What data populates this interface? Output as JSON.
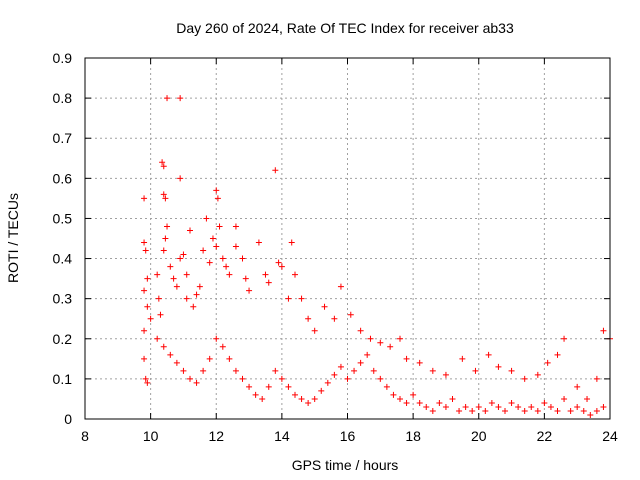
{
  "chart_data": {
    "type": "scatter",
    "title": "Day 260 of 2024, Rate Of TEC Index for receiver ab33",
    "xlabel": "GPS time / hours",
    "ylabel": "ROTI / TECUs",
    "xlim": [
      8,
      24
    ],
    "ylim": [
      0,
      0.9
    ],
    "xticks": [
      8,
      10,
      12,
      14,
      16,
      18,
      20,
      22,
      24
    ],
    "xtick_labels": [
      "8",
      "10",
      "12",
      "14",
      "16",
      "18",
      "20",
      "22",
      "24"
    ],
    "yticks": [
      0,
      0.1,
      0.2,
      0.3,
      0.4,
      0.5,
      0.6,
      0.7,
      0.8,
      0.9
    ],
    "ytick_labels": [
      "0",
      "0.1",
      "0.2",
      "0.3",
      "0.4",
      "0.5",
      "0.6",
      "0.7",
      "0.8",
      "0.9"
    ],
    "grid": true,
    "marker": "+",
    "color": "#ff0000",
    "series": [
      {
        "name": "ROTI",
        "points": [
          [
            9.8,
            0.55
          ],
          [
            9.8,
            0.44
          ],
          [
            9.85,
            0.42
          ],
          [
            9.9,
            0.35
          ],
          [
            9.8,
            0.22
          ],
          [
            9.8,
            0.15
          ],
          [
            9.85,
            0.1
          ],
          [
            9.9,
            0.09
          ],
          [
            9.8,
            0.32
          ],
          [
            9.9,
            0.28
          ],
          [
            10.2,
            0.36
          ],
          [
            10.25,
            0.3
          ],
          [
            10.3,
            0.26
          ],
          [
            10.35,
            0.64
          ],
          [
            10.4,
            0.63
          ],
          [
            10.4,
            0.56
          ],
          [
            10.45,
            0.55
          ],
          [
            10.5,
            0.48
          ],
          [
            10.45,
            0.45
          ],
          [
            10.4,
            0.42
          ],
          [
            10.5,
            0.8
          ],
          [
            10.9,
            0.8
          ],
          [
            10.9,
            0.6
          ],
          [
            10.6,
            0.38
          ],
          [
            10.7,
            0.35
          ],
          [
            10.8,
            0.33
          ],
          [
            10.9,
            0.4
          ],
          [
            11.0,
            0.41
          ],
          [
            11.1,
            0.36
          ],
          [
            11.2,
            0.47
          ],
          [
            11.1,
            0.3
          ],
          [
            11.3,
            0.28
          ],
          [
            11.4,
            0.31
          ],
          [
            11.5,
            0.33
          ],
          [
            11.6,
            0.42
          ],
          [
            11.7,
            0.5
          ],
          [
            11.8,
            0.39
          ],
          [
            11.9,
            0.45
          ],
          [
            12.0,
            0.57
          ],
          [
            12.05,
            0.55
          ],
          [
            12.1,
            0.48
          ],
          [
            12.0,
            0.43
          ],
          [
            12.2,
            0.4
          ],
          [
            12.3,
            0.38
          ],
          [
            12.4,
            0.36
          ],
          [
            12.6,
            0.48
          ],
          [
            12.6,
            0.43
          ],
          [
            12.8,
            0.4
          ],
          [
            12.9,
            0.35
          ],
          [
            13.0,
            0.32
          ],
          [
            13.3,
            0.44
          ],
          [
            13.5,
            0.36
          ],
          [
            13.6,
            0.34
          ],
          [
            13.8,
            0.62
          ],
          [
            13.9,
            0.39
          ],
          [
            14.0,
            0.38
          ],
          [
            14.2,
            0.3
          ],
          [
            14.3,
            0.44
          ],
          [
            14.4,
            0.36
          ],
          [
            14.6,
            0.3
          ],
          [
            14.8,
            0.25
          ],
          [
            15.0,
            0.22
          ],
          [
            15.3,
            0.28
          ],
          [
            15.6,
            0.25
          ],
          [
            15.8,
            0.33
          ],
          [
            16.1,
            0.26
          ],
          [
            16.4,
            0.22
          ],
          [
            16.7,
            0.2
          ],
          [
            17.0,
            0.19
          ],
          [
            17.3,
            0.18
          ],
          [
            17.6,
            0.2
          ],
          [
            17.8,
            0.15
          ],
          [
            18.2,
            0.14
          ],
          [
            18.6,
            0.12
          ],
          [
            19.0,
            0.11
          ],
          [
            19.5,
            0.15
          ],
          [
            19.9,
            0.12
          ],
          [
            20.3,
            0.16
          ],
          [
            20.6,
            0.13
          ],
          [
            21.0,
            0.12
          ],
          [
            21.4,
            0.1
          ],
          [
            21.8,
            0.11
          ],
          [
            22.1,
            0.14
          ],
          [
            22.4,
            0.16
          ],
          [
            22.6,
            0.2
          ],
          [
            23.0,
            0.08
          ],
          [
            23.3,
            0.05
          ],
          [
            23.6,
            0.1
          ],
          [
            23.8,
            0.22
          ],
          [
            24.0,
            0.2
          ],
          [
            10.0,
            0.25
          ],
          [
            10.2,
            0.2
          ],
          [
            10.4,
            0.18
          ],
          [
            10.6,
            0.16
          ],
          [
            10.8,
            0.14
          ],
          [
            11.0,
            0.12
          ],
          [
            11.2,
            0.1
          ],
          [
            11.4,
            0.09
          ],
          [
            11.6,
            0.12
          ],
          [
            11.8,
            0.15
          ],
          [
            12.0,
            0.2
          ],
          [
            12.2,
            0.18
          ],
          [
            12.4,
            0.15
          ],
          [
            12.6,
            0.12
          ],
          [
            12.8,
            0.1
          ],
          [
            13.0,
            0.08
          ],
          [
            13.2,
            0.06
          ],
          [
            13.4,
            0.05
          ],
          [
            13.6,
            0.08
          ],
          [
            13.8,
            0.12
          ],
          [
            14.0,
            0.1
          ],
          [
            14.2,
            0.08
          ],
          [
            14.4,
            0.06
          ],
          [
            14.6,
            0.05
          ],
          [
            14.8,
            0.04
          ],
          [
            15.0,
            0.05
          ],
          [
            15.2,
            0.07
          ],
          [
            15.4,
            0.09
          ],
          [
            15.6,
            0.11
          ],
          [
            15.8,
            0.13
          ],
          [
            16.0,
            0.1
          ],
          [
            16.2,
            0.12
          ],
          [
            16.4,
            0.14
          ],
          [
            16.6,
            0.16
          ],
          [
            16.8,
            0.12
          ],
          [
            17.0,
            0.1
          ],
          [
            17.2,
            0.08
          ],
          [
            17.4,
            0.06
          ],
          [
            17.6,
            0.05
          ],
          [
            17.8,
            0.04
          ],
          [
            18.0,
            0.06
          ],
          [
            18.2,
            0.04
          ],
          [
            18.4,
            0.03
          ],
          [
            18.6,
            0.02
          ],
          [
            18.8,
            0.04
          ],
          [
            19.0,
            0.03
          ],
          [
            19.2,
            0.05
          ],
          [
            19.4,
            0.02
          ],
          [
            19.6,
            0.03
          ],
          [
            19.8,
            0.02
          ],
          [
            20.0,
            0.03
          ],
          [
            20.2,
            0.02
          ],
          [
            20.4,
            0.04
          ],
          [
            20.6,
            0.03
          ],
          [
            20.8,
            0.02
          ],
          [
            21.0,
            0.04
          ],
          [
            21.2,
            0.03
          ],
          [
            21.4,
            0.02
          ],
          [
            21.6,
            0.03
          ],
          [
            21.8,
            0.02
          ],
          [
            22.0,
            0.04
          ],
          [
            22.2,
            0.03
          ],
          [
            22.4,
            0.02
          ],
          [
            22.6,
            0.05
          ],
          [
            22.8,
            0.02
          ],
          [
            23.0,
            0.03
          ],
          [
            23.2,
            0.02
          ],
          [
            23.4,
            0.01
          ],
          [
            23.6,
            0.02
          ],
          [
            23.8,
            0.03
          ]
        ]
      }
    ]
  }
}
